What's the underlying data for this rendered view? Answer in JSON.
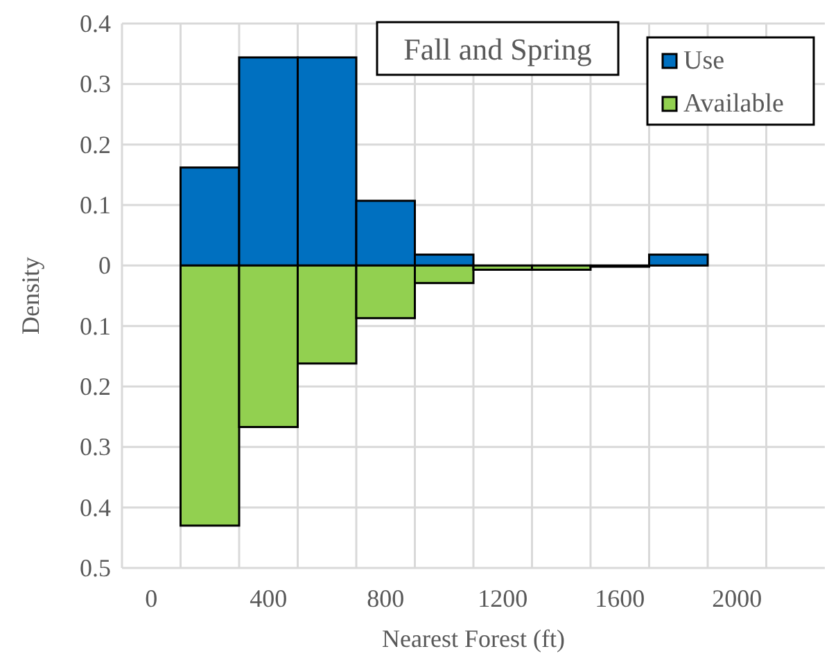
{
  "chart_data": {
    "type": "bar",
    "title": "Fall and Spring",
    "xlabel": "Nearest Forest (ft)",
    "ylabel": "Density",
    "x": [
      200,
      400,
      600,
      800,
      1000,
      1200,
      1400,
      1600,
      1800
    ],
    "series": [
      {
        "name": "Use",
        "color": "#0070c0",
        "values": [
          0.162,
          0.344,
          0.344,
          0.107,
          0.018,
          null,
          null,
          null,
          0.018
        ]
      },
      {
        "name": "Available",
        "color": "#92d050",
        "values": [
          -0.43,
          -0.267,
          -0.162,
          -0.087,
          -0.029,
          -0.007,
          -0.007,
          -0.002,
          null
        ]
      }
    ],
    "xlim": [
      -100,
      2300
    ],
    "xticks": [
      0,
      400,
      800,
      1200,
      1600,
      2000,
      {
        "value": 100,
        "label": null
      },
      {
        "value": 300,
        "label": null
      },
      {
        "value": 500,
        "label": null
      },
      {
        "value": 700,
        "label": null
      },
      {
        "value": 900,
        "label": null
      },
      {
        "value": 1100,
        "label": null
      },
      {
        "value": 1300,
        "label": null
      },
      {
        "value": 1500,
        "label": null
      },
      {
        "value": 1700,
        "label": null
      },
      {
        "value": 1900,
        "label": null
      },
      {
        "value": 2100,
        "label": null
      }
    ],
    "ylim": [
      -0.5,
      0.4
    ],
    "yticks": [
      {
        "value": 0.4,
        "label": "0.4"
      },
      {
        "value": 0.3,
        "label": "0.3"
      },
      {
        "value": 0.2,
        "label": "0.2"
      },
      {
        "value": 0.1,
        "label": "0.1"
      },
      {
        "value": 0,
        "label": "0"
      },
      {
        "value": -0.1,
        "label": "0.1"
      },
      {
        "value": -0.2,
        "label": "0.2"
      },
      {
        "value": -0.3,
        "label": "0.3"
      },
      {
        "value": -0.4,
        "label": "0.4"
      },
      {
        "value": -0.5,
        "label": "0.5"
      }
    ],
    "ref_lines": [
      {
        "axis": "y",
        "value": 0,
        "color": "#bfbfbf"
      }
    ],
    "stacked": true,
    "grid": true,
    "legend": "top right"
  }
}
